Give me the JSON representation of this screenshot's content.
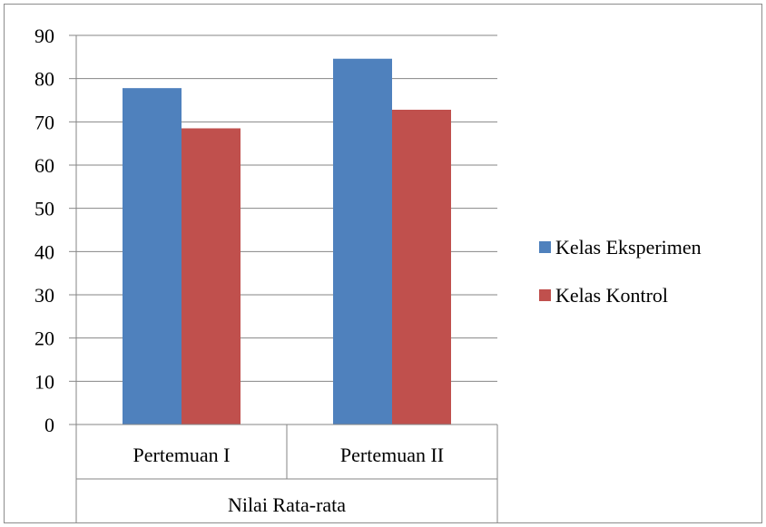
{
  "chart_data": {
    "type": "bar",
    "categories": [
      "Pertemuan I",
      "Pertemuan II"
    ],
    "group_label": "Nilai Rata-rata",
    "series": [
      {
        "name": "Kelas Eksperimen",
        "values": [
          77.8,
          84.6
        ],
        "color": "#4F81BD"
      },
      {
        "name": "Kelas Kontrol",
        "values": [
          68.5,
          72.8
        ],
        "color": "#C0504D"
      }
    ],
    "ylim": [
      0,
      90
    ],
    "y_ticks": [
      0,
      10,
      20,
      30,
      40,
      50,
      60,
      70,
      80,
      90
    ],
    "grid": true,
    "legend_position": "right"
  }
}
